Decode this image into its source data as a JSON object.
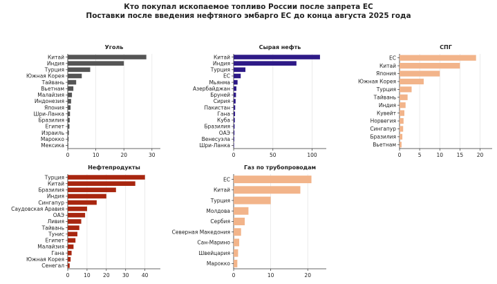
{
  "header": {
    "title": "Кто покупал ископаемое топливо России после запрета ЕС",
    "subtitle": "Поставки после введения нефтяного эмбарго ЕС до конца августа 2025 года"
  },
  "chart_data": [
    {
      "type": "bar",
      "orientation": "horizontal",
      "title": "Уголь",
      "color": "#555555",
      "xlim": [
        0,
        33
      ],
      "xticks": [
        0,
        10,
        20,
        30
      ],
      "categories": [
        "Китай",
        "Индия",
        "Турция",
        "Южная Корея",
        "Тайвань",
        "Вьетнам",
        "Малайзия",
        "Индонезия",
        "Япония",
        "Шри-Ланка",
        "Бразилия",
        "Египет",
        "Израиль",
        "Марокко",
        "Мексика"
      ],
      "values": [
        28,
        20,
        8,
        5,
        3,
        2,
        1.5,
        1.2,
        1,
        0.8,
        0.7,
        0.6,
        0.4,
        0.3,
        0.2
      ]
    },
    {
      "type": "bar",
      "orientation": "horizontal",
      "title": "Сырая нефть",
      "color": "#2e1a87",
      "xlim": [
        0,
        118
      ],
      "xticks": [
        0,
        50,
        100
      ],
      "categories": [
        "Китай",
        "Индия",
        "Турция",
        "ЕС",
        "Мьянма",
        "Азербайджан",
        "Бруней",
        "Сирия",
        "Пакистан",
        "Гана",
        "Куба",
        "Бразилия",
        "ОАЭ",
        "Венесуэла",
        "Шри-Ланка"
      ],
      "values": [
        110,
        80,
        15,
        9,
        5,
        3.5,
        3,
        2.5,
        2,
        1.8,
        1.5,
        1.2,
        1,
        0.8,
        0.5
      ]
    },
    {
      "type": "bar",
      "orientation": "horizontal",
      "title": "СПГ",
      "color": "#f2b48a",
      "xlim": [
        0,
        23
      ],
      "xticks": [
        0,
        5,
        10,
        15,
        20
      ],
      "categories": [
        "ЕС",
        "Китай",
        "Япония",
        "Южная Корея",
        "Турция",
        "Тайвань",
        "Индия",
        "Кувейт",
        "Норвегия",
        "Сингапур",
        "Бразилия",
        "Вьетнам"
      ],
      "values": [
        19,
        15,
        10,
        6,
        3,
        2,
        1.5,
        1.2,
        1,
        0.9,
        0.7,
        0.5
      ]
    },
    {
      "type": "bar",
      "orientation": "horizontal",
      "title": "Нефтепродукты",
      "color": "#a8260f",
      "xlim": [
        0,
        48
      ],
      "xticks": [
        0,
        10,
        20,
        30,
        40
      ],
      "categories": [
        "Турция",
        "Китай",
        "Бразилия",
        "Индия",
        "Сингапур",
        "Саудовская Аравия",
        "ОАЭ",
        "Ливия",
        "Тайвань",
        "Тунис",
        "Египет",
        "Малайзия",
        "Гана",
        "Южная Корея",
        "Сенегал"
      ],
      "values": [
        40,
        35,
        25,
        20,
        15,
        10,
        9,
        7,
        6,
        5,
        4,
        3,
        2,
        1.5,
        1
      ]
    },
    {
      "type": "bar",
      "orientation": "horizontal",
      "title": "Газ по трубопроводам",
      "color": "#f2b48a",
      "xlim": [
        0,
        25
      ],
      "xticks": [
        0,
        10,
        20
      ],
      "categories": [
        "ЕС",
        "Китай",
        "Турция",
        "Молдова",
        "Сербия",
        "Северная Македония",
        "Сан-Марино",
        "Швейцария",
        "Марокко"
      ],
      "values": [
        21,
        18,
        10,
        4,
        3,
        2,
        1.5,
        1.2,
        1
      ]
    }
  ]
}
